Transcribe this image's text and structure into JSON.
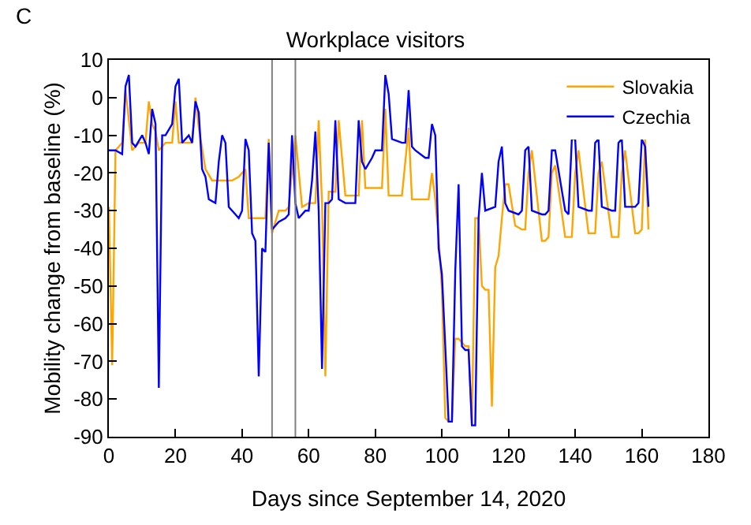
{
  "chart_data": {
    "type": "line",
    "title": "Workplace visitors",
    "xlabel": "Days since September 14, 2020",
    "ylabel": "Mobility change from baseline (%)",
    "annotations": [
      "C"
    ],
    "xlim": [
      0,
      180
    ],
    "xticks": [
      0,
      20,
      40,
      60,
      80,
      100,
      120,
      140,
      160,
      180
    ],
    "ylim": [
      -90,
      10
    ],
    "yticks": [
      -90,
      -80,
      -70,
      -60,
      -50,
      -40,
      -30,
      -20,
      -10,
      0,
      10
    ],
    "legend": "top right",
    "marker": "none",
    "line_style": "solid",
    "ref_lines": [
      {
        "axis": "x",
        "value": 49,
        "color": "#808080"
      },
      {
        "axis": "x",
        "value": 56,
        "color": "#808080"
      }
    ],
    "series": [
      {
        "name": "Slovakia",
        "color": "#ffa500",
        "x": [
          0,
          1,
          2,
          3,
          4,
          5,
          7,
          9,
          11,
          12,
          13,
          14,
          15,
          17,
          19,
          20,
          21,
          23,
          25,
          26,
          27,
          29,
          31,
          33,
          35,
          37,
          39,
          41,
          42,
          44,
          46,
          47,
          48,
          49,
          51,
          53,
          54,
          56,
          58,
          60,
          62,
          63,
          64,
          65,
          66,
          68,
          69,
          71,
          73,
          75,
          76,
          77,
          79,
          81,
          82,
          83,
          84,
          86,
          88,
          90,
          91,
          93,
          95,
          96,
          97,
          98,
          99,
          100,
          101,
          102,
          103,
          104,
          105,
          107,
          108,
          109,
          110,
          111,
          112,
          113,
          114,
          115,
          116,
          117,
          118,
          119,
          120,
          122,
          124,
          125,
          126,
          127,
          130,
          131,
          132,
          133,
          134,
          137,
          138,
          139,
          140,
          141,
          144,
          145,
          146,
          147,
          148,
          151,
          152,
          153,
          154,
          155,
          158,
          159,
          160,
          161,
          162
        ],
        "values": [
          -29,
          -71,
          -14,
          -13,
          -12,
          2,
          -14,
          -12,
          -12,
          -1,
          -7,
          -9,
          -14,
          -12,
          -12,
          -1,
          -12,
          -12,
          -12,
          0,
          -8,
          -19,
          -22,
          -22,
          -22,
          -22,
          -21,
          -19,
          -32,
          -32,
          -32,
          -32,
          -11,
          -36,
          -30,
          -30,
          -29,
          -10,
          -29,
          -28,
          -28,
          -6,
          -28,
          -74,
          -25,
          -25,
          -6,
          -26,
          -26,
          -26,
          -6,
          -24,
          -24,
          -24,
          -24,
          -3,
          -26,
          -26,
          -26,
          -8,
          -27,
          -27,
          -27,
          -27,
          -20,
          -27,
          -37,
          -51,
          -85,
          -86,
          -86,
          -64,
          -64,
          -66,
          -66,
          -87,
          -32,
          -32,
          -50,
          -51,
          -51,
          -82,
          -45,
          -42,
          -32,
          -23,
          -23,
          -34,
          -35,
          -35,
          -20,
          -14,
          -38,
          -38,
          -37,
          -20,
          -18,
          -37,
          -37,
          -37,
          -20,
          -14,
          -36,
          -36,
          -36,
          -20,
          -17,
          -37,
          -37,
          -37,
          -20,
          -14,
          -36,
          -36,
          -35,
          -11,
          -35
        ]
      },
      {
        "name": "Czechia",
        "color": "#0000ff",
        "x": [
          0,
          2,
          4,
          5,
          6,
          7,
          8,
          10,
          11,
          12,
          13,
          14,
          15,
          16,
          17,
          19,
          20,
          21,
          22,
          24,
          25,
          26,
          27,
          28,
          29,
          30,
          32,
          33,
          34,
          35,
          36,
          38,
          39,
          40,
          41,
          42,
          43,
          44,
          45,
          46,
          47,
          48,
          49,
          50,
          51,
          53,
          54,
          55,
          56,
          57,
          59,
          60,
          61,
          62,
          63,
          64,
          65,
          66,
          67,
          68,
          69,
          71,
          74,
          75,
          76,
          77,
          79,
          80,
          81,
          82,
          83,
          84,
          85,
          88,
          89,
          90,
          91,
          92,
          95,
          96,
          97,
          98,
          99,
          100,
          101,
          102,
          103,
          104,
          105,
          106,
          107,
          108,
          109,
          110,
          111,
          112,
          113,
          116,
          117,
          118,
          119,
          120,
          123,
          124,
          125,
          126,
          127,
          130,
          131,
          132,
          133,
          134,
          137,
          138,
          139,
          140,
          141,
          144,
          145,
          146,
          147,
          148,
          151,
          152,
          153,
          154,
          155,
          158,
          159,
          160,
          161,
          162
        ],
        "values": [
          -14,
          -14,
          -15,
          3,
          6,
          -12,
          -13,
          -10,
          -12,
          -15,
          -3,
          -7,
          -77,
          -10,
          -10,
          -7,
          3,
          5,
          -12,
          -10,
          -12,
          -1,
          -4,
          -19,
          -21,
          -27,
          -28,
          -17,
          -10,
          -12,
          -29,
          -31,
          -32,
          -30,
          -11,
          -14,
          -36,
          -38,
          -74,
          -40,
          -41,
          -12,
          -35,
          -34,
          -33,
          -32,
          -31,
          -10,
          -28,
          -32,
          -30,
          -30,
          -22,
          -9,
          -30,
          -72,
          -28,
          -28,
          -27,
          -6,
          -27,
          -28,
          -28,
          -6,
          -17,
          -19,
          -16,
          -14,
          -14,
          -14,
          6,
          1,
          -11,
          -12,
          -12,
          2,
          -13,
          -14,
          -16,
          -16,
          -7,
          -10,
          -40,
          -47,
          -66,
          -86,
          -86,
          -46,
          -23,
          -66,
          -67,
          -67,
          -87,
          -87,
          -32,
          -20,
          -30,
          -29,
          -17,
          -13,
          -28,
          -30,
          -31,
          -30,
          -14,
          -13,
          -30,
          -31,
          -31,
          -30,
          -14,
          -14,
          -30,
          -31,
          -11,
          -11,
          -29,
          -30,
          -30,
          -12,
          -11,
          -29,
          -30,
          -30,
          -12,
          -11,
          -29,
          -29,
          -28,
          -11,
          -13,
          -29
        ]
      }
    ]
  }
}
